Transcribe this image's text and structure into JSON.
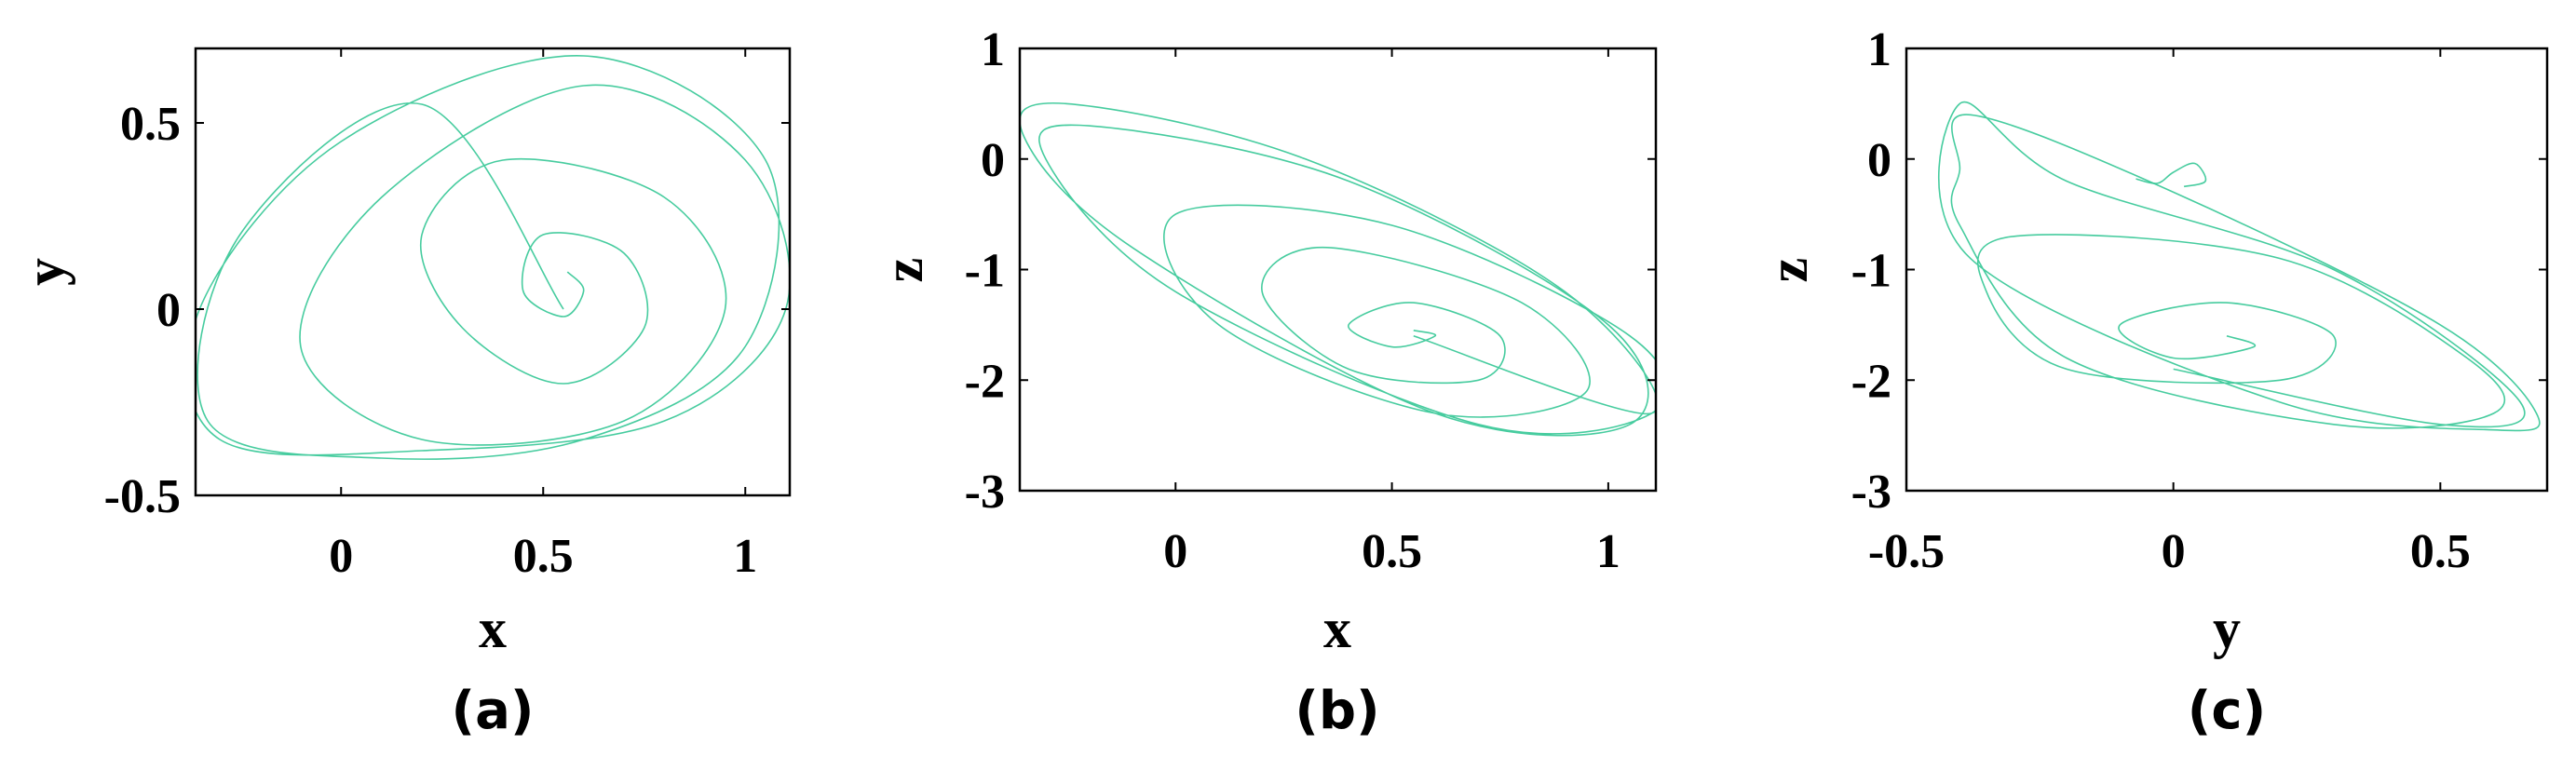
{
  "figure": {
    "line_color": "#33c795"
  },
  "chart_data": [
    {
      "type": "line",
      "panel_label": "(a)",
      "xlabel": "x",
      "ylabel": "y",
      "xlim": [
        -0.36,
        1.11
      ],
      "ylim": [
        -0.5,
        0.7
      ],
      "xticks": [
        0,
        0.5,
        1
      ],
      "xtick_labels": [
        "0",
        "0.5",
        "1"
      ],
      "yticks": [
        -0.5,
        0,
        0.5
      ],
      "ytick_labels": [
        "-0.5",
        "0",
        "0.5"
      ],
      "grid": false,
      "series": [
        {
          "color": "#33c795",
          "x": [
            0.56,
            0.6,
            0.55,
            0.45,
            0.5,
            0.7,
            0.75,
            0.55,
            0.3,
            0.2,
            0.4,
            0.8,
            0.95,
            0.7,
            0.2,
            -0.1,
            0.1,
            0.6,
            1.0,
            1.1,
            0.8,
            0.2,
            -0.3,
            -0.35,
            0.0,
            0.6,
            1.05,
            1.0,
            0.6,
            0.1,
            -0.33,
            -0.25,
            0.2,
            0.55
          ],
          "y": [
            0.1,
            0.05,
            -0.02,
            0.05,
            0.2,
            0.15,
            -0.05,
            -0.2,
            -0.05,
            0.2,
            0.4,
            0.3,
            0.0,
            -0.3,
            -0.35,
            -0.1,
            0.3,
            0.6,
            0.4,
            0.0,
            -0.3,
            -0.38,
            -0.35,
            0.0,
            0.45,
            0.68,
            0.4,
            -0.1,
            -0.35,
            -0.4,
            -0.3,
            0.2,
            0.55,
            0.0
          ]
        }
      ]
    },
    {
      "type": "line",
      "panel_label": "(b)",
      "xlabel": "x",
      "ylabel": "z",
      "xlim": [
        -0.36,
        1.11
      ],
      "ylim": [
        -3,
        1
      ],
      "xticks": [
        0,
        0.5,
        1
      ],
      "xtick_labels": [
        "0",
        "0.5",
        "1"
      ],
      "yticks": [
        -3,
        -2,
        -1,
        0,
        1
      ],
      "ytick_labels": [
        "-3",
        "-2",
        "-1",
        "0",
        "1"
      ],
      "grid": false,
      "series": [
        {
          "color": "#33c795",
          "x": [
            0.55,
            0.6,
            0.5,
            0.4,
            0.55,
            0.75,
            0.7,
            0.4,
            0.2,
            0.35,
            0.8,
            0.95,
            0.6,
            0.1,
            0.0,
            0.5,
            1.05,
            1.1,
            0.7,
            0.0,
            -0.3,
            -0.2,
            0.4,
            1.0,
            1.05,
            0.6,
            -0.1,
            -0.35,
            -0.25,
            0.3,
            0.9,
            1.1,
            0.55
          ],
          "y": [
            -1.55,
            -1.6,
            -1.7,
            -1.5,
            -1.3,
            -1.6,
            -2.0,
            -1.9,
            -1.2,
            -0.8,
            -1.3,
            -2.1,
            -2.3,
            -1.5,
            -0.5,
            -0.6,
            -1.6,
            -2.3,
            -2.4,
            -1.2,
            0.0,
            0.3,
            -0.2,
            -1.5,
            -2.4,
            -2.3,
            -0.8,
            0.2,
            0.5,
            0.0,
            -1.2,
            -2.3,
            -1.6
          ]
        }
      ]
    },
    {
      "type": "line",
      "panel_label": "(c)",
      "xlabel": "y",
      "ylabel": "z",
      "xlim": [
        -0.5,
        0.7
      ],
      "ylim": [
        -3,
        1
      ],
      "xticks": [
        -0.5,
        0,
        0.5
      ],
      "xtick_labels": [
        "-0.5",
        "0",
        "0.5"
      ],
      "yticks": [
        -3,
        -2,
        -1,
        0,
        1
      ],
      "ytick_labels": [
        "-3",
        "-2",
        "-1",
        "0",
        "1"
      ],
      "grid": false,
      "series": [
        {
          "color": "#33c795",
          "x": [
            0.1,
            0.15,
            0.0,
            -0.1,
            0.1,
            0.3,
            0.2,
            -0.2,
            -0.35,
            -0.3,
            0.2,
            0.55,
            0.6,
            0.3,
            -0.2,
            -0.4,
            -0.4,
            -0.38,
            0.0,
            0.5,
            0.68,
            0.6,
            0.2,
            -0.38,
            -0.4,
            -0.2,
            0.3,
            0.65,
            0.5,
            0.0
          ],
          "y": [
            -1.6,
            -1.7,
            -1.8,
            -1.5,
            -1.3,
            -1.6,
            -2.0,
            -1.9,
            -1.2,
            -0.7,
            -0.9,
            -1.8,
            -2.3,
            -2.4,
            -1.8,
            -0.6,
            -0.1,
            0.4,
            -0.3,
            -1.5,
            -2.3,
            -2.45,
            -2.2,
            -0.9,
            0.5,
            -0.2,
            -1.0,
            -2.2,
            -2.4,
            -1.9
          ]
        },
        {
          "color": "#33c795",
          "x": [
            -0.07,
            -0.03,
            0.0,
            0.04,
            0.06,
            0.02
          ],
          "y": [
            -0.18,
            -0.22,
            -0.12,
            -0.04,
            -0.2,
            -0.25
          ]
        }
      ]
    }
  ]
}
